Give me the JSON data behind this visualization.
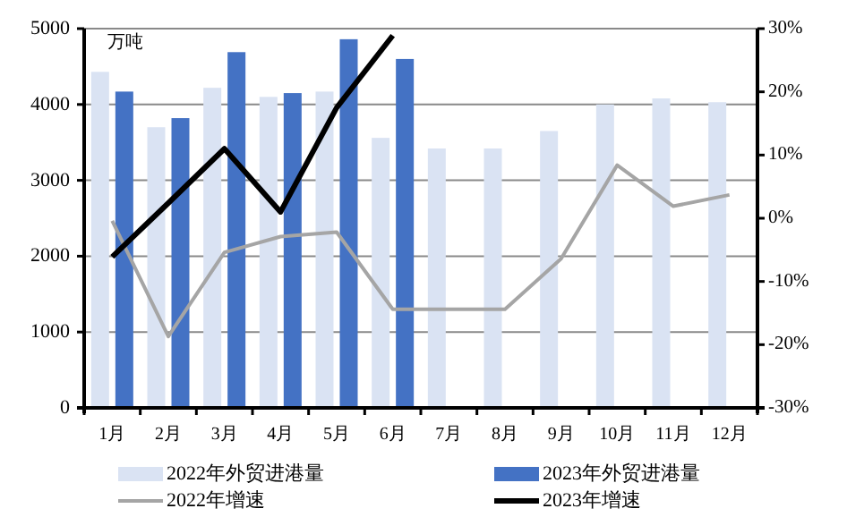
{
  "chart_data": {
    "type": "bar",
    "categories": [
      "1月",
      "2月",
      "3月",
      "4月",
      "5月",
      "6月",
      "7月",
      "8月",
      "9月",
      "10月",
      "11月",
      "12月"
    ],
    "series": [
      {
        "name": "2022年外贸进港量",
        "color": "#dae3f3",
        "values": [
          4430,
          3700,
          4220,
          4100,
          4170,
          3560,
          3420,
          3420,
          3650,
          4000,
          4080,
          4030
        ]
      },
      {
        "name": "2023年外贸进港量",
        "color": "#4472c4",
        "values": [
          4170,
          3820,
          4690,
          4150,
          4860,
          4600,
          null,
          null,
          null,
          null,
          null,
          null
        ]
      },
      {
        "name": "2022年增速",
        "type": "line",
        "axis": "y2",
        "color": "#a5a5a5",
        "values": [
          -0.4,
          -18.7,
          -5.4,
          -2.9,
          -2.2,
          -14.4,
          -14.4,
          -14.4,
          -6.4,
          8.4,
          1.9,
          3.7
        ]
      },
      {
        "name": "2023年增速",
        "type": "line",
        "axis": "y2",
        "color": "#000000",
        "values": [
          -6.1,
          2.4,
          11.0,
          1.0,
          17.5,
          28.9,
          null,
          null,
          null,
          null,
          null,
          null
        ]
      }
    ],
    "ylim": [
      0,
      5000
    ],
    "yticks": [
      0,
      1000,
      2000,
      3000,
      4000,
      5000
    ],
    "y2lim": [
      -30,
      30
    ],
    "y2ticks": [
      {
        "value": -30,
        "label": "-30%"
      },
      {
        "value": -20,
        "label": "-20%"
      },
      {
        "value": -10,
        "label": "-10%"
      },
      {
        "value": 0,
        "label": "0%"
      },
      {
        "value": 10,
        "label": "10%"
      },
      {
        "value": 20,
        "label": "20%"
      },
      {
        "value": 30,
        "label": "30%"
      }
    ],
    "annotations": [
      "万吨"
    ],
    "grid": "y",
    "legend": "bottom"
  }
}
